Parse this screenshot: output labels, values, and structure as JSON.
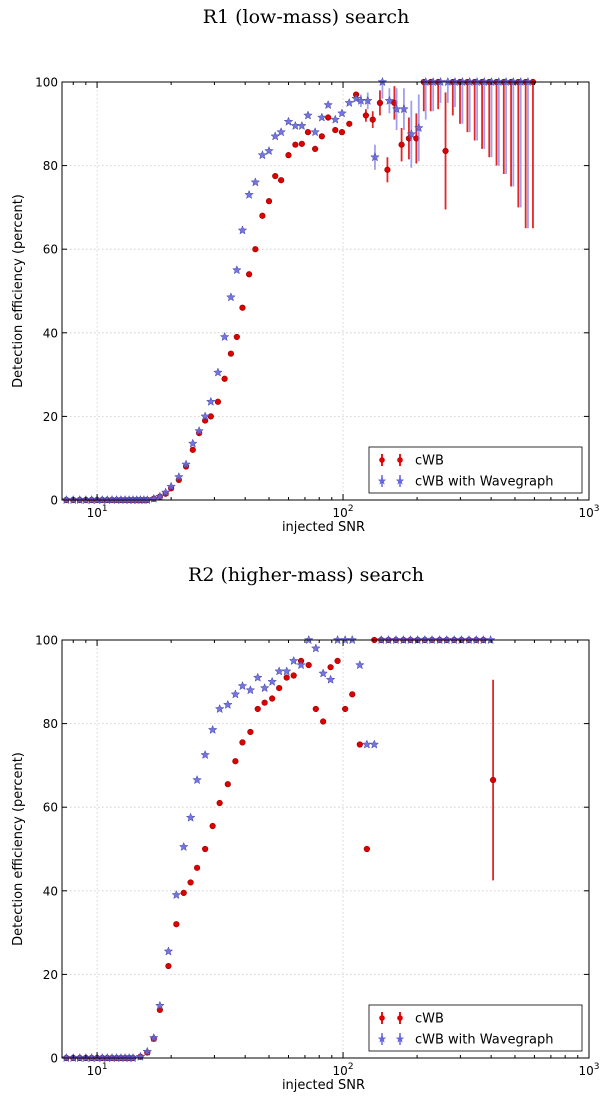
{
  "chart_data": [
    {
      "type": "scatter",
      "title": "R1 (low-mass) search",
      "xlabel": "injected SNR",
      "ylabel": "Detection efficiency (percent)",
      "xscale": "log",
      "xlim": [
        7.2,
        1000
      ],
      "ylim": [
        0,
        100
      ],
      "xticks": [
        {
          "value": 10,
          "label": "10^1"
        },
        {
          "value": 100,
          "label": "10^2"
        },
        {
          "value": 1000,
          "label": "10^3"
        }
      ],
      "yticks": [
        0,
        20,
        40,
        60,
        80,
        100
      ],
      "grid": true,
      "legend": "bottom-right",
      "series": [
        {
          "name": "cWB",
          "color": "#dd0000",
          "marker": "circle",
          "x": [
            7.5,
            8,
            8.5,
            9,
            9.5,
            10,
            10.5,
            11,
            11.5,
            12,
            12.5,
            13,
            13.5,
            14,
            14.5,
            15,
            15.5,
            16,
            17,
            18,
            19,
            20,
            21.5,
            23,
            24.5,
            26,
            27.5,
            29,
            31,
            33,
            35,
            37,
            39,
            41.5,
            44,
            47,
            50,
            53,
            56,
            60,
            64,
            68,
            72,
            77,
            82,
            87,
            93,
            99,
            106,
            113,
            121,
            129,
            138,
            148,
            158,
            169,
            181,
            194,
            208,
            222,
            238,
            255,
            273,
            292,
            313,
            335,
            359,
            384,
            411,
            440,
            471,
            504,
            540,
            578
          ],
          "y": [
            0,
            0,
            0,
            0,
            0,
            0,
            0,
            0,
            0,
            0,
            0,
            0,
            0,
            0,
            0,
            0,
            0,
            0,
            0.3,
            0.8,
            1.5,
            2.8,
            4.8,
            8,
            12,
            16,
            19,
            20,
            23.5,
            29,
            35,
            39,
            46,
            54,
            60,
            68,
            71.5,
            77.5,
            76.5,
            82.5,
            85,
            85.2,
            88,
            84,
            87,
            91.5,
            88.5,
            88,
            90,
            97,
            92,
            91,
            95,
            79,
            95,
            85,
            86.5,
            86.5,
            100,
            100,
            100,
            83.5,
            100,
            100,
            100,
            100,
            100,
            100,
            100,
            100,
            100,
            100,
            100,
            100
          ],
          "err": [
            0,
            0,
            0,
            0,
            0,
            0,
            0,
            0,
            0,
            0,
            0,
            0,
            0,
            0,
            0,
            0,
            0,
            0,
            0,
            0,
            0,
            0,
            0,
            0,
            0,
            0,
            0,
            0,
            0,
            0,
            0,
            0,
            0,
            0,
            0,
            0,
            0,
            0,
            0,
            0,
            0,
            0,
            0,
            0,
            0,
            0,
            0,
            0,
            0,
            0,
            1.5,
            2,
            3,
            3,
            4,
            4,
            5,
            6,
            7,
            7,
            6.5,
            14,
            8,
            10,
            12,
            14,
            16,
            18,
            20,
            22,
            25,
            30,
            35,
            35
          ]
        },
        {
          "name": "cWB with Wavegraph",
          "color": "#6666dd",
          "marker": "star",
          "x": [
            7.5,
            8,
            8.5,
            9,
            9.5,
            10,
            10.5,
            11,
            11.5,
            12,
            12.5,
            13,
            13.5,
            14,
            14.5,
            15,
            15.5,
            16,
            17,
            18,
            19,
            20,
            21.5,
            23,
            24.5,
            26,
            27.5,
            29,
            31,
            33,
            35,
            37,
            39,
            41.5,
            44,
            47,
            50,
            53,
            56,
            60,
            64,
            68,
            72,
            77,
            82,
            87,
            93,
            99,
            106,
            113,
            121,
            129,
            138,
            148,
            158,
            169,
            181,
            194,
            208,
            222,
            238,
            255,
            273,
            292,
            313,
            335,
            359,
            384,
            411,
            440,
            471,
            504,
            540,
            578
          ],
          "y": [
            0,
            0,
            0,
            0,
            0,
            0,
            0,
            0,
            0,
            0,
            0,
            0,
            0,
            0,
            0,
            0,
            0,
            0,
            0.3,
            0.8,
            1.8,
            3.2,
            5.5,
            8.5,
            13.5,
            16.5,
            20,
            23.5,
            30.5,
            39,
            48.5,
            55,
            64.5,
            73,
            76,
            82.5,
            83.5,
            87,
            88,
            90.5,
            89.5,
            89.5,
            92,
            88,
            91.5,
            94.5,
            91,
            92.5,
            95,
            96,
            95.5,
            95.5,
            82,
            100,
            95.5,
            93.5,
            93.5,
            87.5,
            89,
            100,
            100,
            100,
            100,
            100,
            100,
            100,
            100,
            100,
            100,
            100,
            100,
            100,
            100,
            100
          ],
          "err": [
            0,
            0,
            0,
            0,
            0,
            0,
            0,
            0,
            0,
            0,
            0,
            0,
            0,
            0,
            0,
            0,
            0,
            0,
            0,
            0,
            0,
            0,
            0,
            0,
            0,
            0,
            0,
            0,
            0,
            0,
            0,
            0,
            0,
            0,
            0,
            0,
            0,
            0,
            0,
            0,
            0,
            0,
            0,
            0,
            0,
            0,
            0,
            0,
            0,
            0,
            1.5,
            2,
            3,
            4,
            3,
            5,
            5,
            8,
            8,
            9,
            7,
            5,
            5,
            6,
            10,
            12,
            14,
            16,
            18,
            20,
            22,
            25,
            30,
            35
          ]
        }
      ]
    },
    {
      "type": "scatter",
      "title": "R2 (higher-mass) search",
      "xlabel": "injected SNR",
      "ylabel": "Detection efficiency (percent)",
      "xscale": "log",
      "xlim": [
        7.2,
        1000
      ],
      "ylim": [
        0,
        100
      ],
      "xticks": [
        {
          "value": 10,
          "label": "10^1"
        },
        {
          "value": 100,
          "label": "10^2"
        },
        {
          "value": 1000,
          "label": "10^3"
        }
      ],
      "yticks": [
        0,
        20,
        40,
        60,
        80,
        100
      ],
      "grid": true,
      "legend": "bottom-right",
      "series": [
        {
          "name": "cWB",
          "color": "#dd0000",
          "marker": "circle",
          "x": [
            7.5,
            8,
            8.5,
            9,
            9.5,
            10,
            10.5,
            11,
            11.5,
            12,
            12.5,
            13,
            13.5,
            14,
            15,
            16,
            17,
            18,
            19.5,
            21,
            22.5,
            24,
            25.5,
            27.5,
            29.5,
            31.5,
            34,
            36.5,
            39,
            42,
            45,
            48,
            51.5,
            55,
            59,
            63,
            67.5,
            72.5,
            77.5,
            83,
            89,
            95,
            102,
            109,
            117,
            125,
            134,
            143,
            153,
            164,
            176,
            188,
            201,
            215,
            230,
            247,
            264,
            283,
            303,
            325,
            348,
            372,
            398
          ],
          "y": [
            0,
            0,
            0,
            0,
            0,
            0,
            0,
            0,
            0,
            0,
            0,
            0,
            0,
            0,
            0.3,
            1.3,
            4.6,
            11.5,
            22,
            32,
            39.5,
            42,
            45.5,
            50,
            55.5,
            61,
            65.5,
            71,
            75.5,
            78,
            83.5,
            85,
            86,
            88.5,
            91,
            91.5,
            95,
            94,
            83.5,
            80.5,
            93.5,
            95,
            83.5,
            87,
            75,
            50,
            100,
            100,
            100,
            100,
            100,
            100,
            100,
            100,
            100,
            100,
            100,
            100,
            100,
            100,
            100,
            100,
            66.5
          ],
          "err": [
            0,
            0,
            0,
            0,
            0,
            0,
            0,
            0,
            0,
            0,
            0,
            0,
            0,
            0,
            0,
            0,
            0,
            0,
            0,
            0,
            0,
            0,
            0,
            0,
            0,
            0,
            0,
            0,
            0,
            0,
            0,
            0,
            0,
            0,
            0,
            0,
            0,
            0,
            0,
            0,
            0,
            0,
            0,
            0,
            0,
            0,
            0,
            0,
            0,
            0,
            0,
            0,
            0,
            0,
            0,
            0,
            0,
            0,
            0,
            0,
            0,
            0,
            24
          ]
        },
        {
          "name": "cWB with Wavegraph",
          "color": "#6666dd",
          "marker": "star",
          "x": [
            7.5,
            8,
            8.5,
            9,
            9.5,
            10,
            10.5,
            11,
            11.5,
            12,
            12.5,
            13,
            13.5,
            14,
            15,
            16,
            17,
            18,
            19.5,
            21,
            22.5,
            24,
            25.5,
            27.5,
            29.5,
            31.5,
            34,
            36.5,
            39,
            42,
            45,
            48,
            51.5,
            55,
            59,
            63,
            67.5,
            72.5,
            77.5,
            83,
            89,
            95,
            102,
            109,
            117,
            125,
            134,
            143,
            153,
            164,
            176,
            188,
            201,
            215,
            230,
            247,
            264,
            283,
            303,
            325,
            348,
            372,
            398
          ],
          "y": [
            0,
            0,
            0,
            0,
            0,
            0,
            0,
            0,
            0,
            0,
            0,
            0,
            0,
            0,
            0.3,
            1.5,
            4.8,
            12.5,
            25.5,
            39,
            50.5,
            57.5,
            66.5,
            72.5,
            78.5,
            83.5,
            84.5,
            87,
            89,
            88,
            91,
            88.5,
            90,
            92.5,
            92.5,
            95,
            94,
            100,
            98,
            92,
            90.5,
            100,
            100,
            100,
            94,
            75,
            75,
            100,
            100,
            100,
            100,
            100,
            100,
            100,
            100,
            100,
            100,
            100,
            100,
            100,
            100,
            100,
            100
          ],
          "err": [
            0,
            0,
            0,
            0,
            0,
            0,
            0,
            0,
            0,
            0,
            0,
            0,
            0,
            0,
            0,
            0,
            0,
            0,
            0,
            0,
            0,
            0,
            0,
            0,
            0,
            0,
            0,
            0,
            0,
            0,
            0,
            0,
            0,
            0,
            0,
            0,
            0,
            0,
            0,
            0,
            0,
            0,
            0,
            0,
            0,
            0,
            0,
            0,
            0,
            0,
            0,
            0,
            0,
            0,
            0,
            0,
            0,
            0,
            0,
            0,
            0,
            0,
            0
          ]
        }
      ]
    }
  ]
}
